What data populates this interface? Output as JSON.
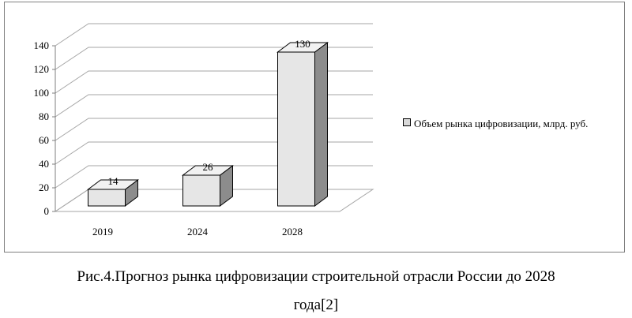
{
  "chart_data": {
    "type": "bar",
    "categories": [
      "2019",
      "2024",
      "2028"
    ],
    "series": [
      {
        "name": "Объем рынка цифровизации, млрд. руб.",
        "values": [
          14,
          26,
          130
        ]
      }
    ],
    "data_labels": [
      "14",
      "26",
      "130"
    ],
    "y_ticks": [
      "0",
      "20",
      "40",
      "60",
      "80",
      "100",
      "120",
      "140"
    ],
    "ylim": [
      0,
      140
    ],
    "grid": true,
    "legend_position": "right",
    "colors": {
      "bar_front": "#e6e6e6",
      "bar_side": "#8c8c8c",
      "bar_top": "#f2f2f2",
      "grid": "#a6a6a6"
    }
  },
  "caption": {
    "line1": "Рис.4.Прогноз  рынка цифровизации строительной отрасли России до 2028",
    "line2": "года[2]"
  }
}
